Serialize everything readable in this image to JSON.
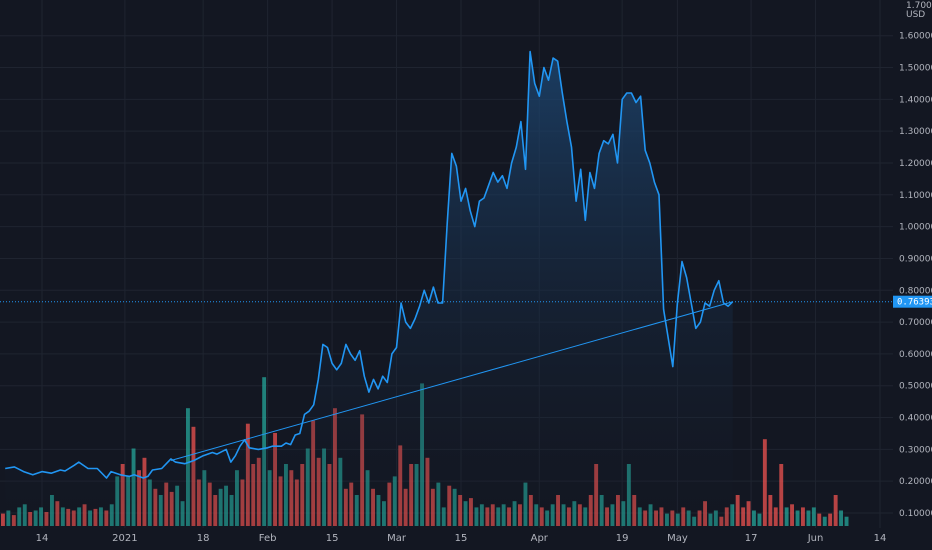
{
  "chart_data": {
    "type": "area",
    "currency": "USD",
    "y_scale_top": "1.70000",
    "current_price": 0.76393,
    "current_price_label": "0.76393",
    "ylim": [
      0.05,
      1.72
    ],
    "y_ticks": [
      {
        "v": 1.6,
        "label": "1.60000"
      },
      {
        "v": 1.5,
        "label": "1.50000"
      },
      {
        "v": 1.4,
        "label": "1.40000"
      },
      {
        "v": 1.3,
        "label": "1.30000"
      },
      {
        "v": 1.2,
        "label": "1.20000"
      },
      {
        "v": 1.1,
        "label": "1.10000"
      },
      {
        "v": 1.0,
        "label": "1.00000"
      },
      {
        "v": 0.9,
        "label": "0.90000"
      },
      {
        "v": 0.8,
        "label": "0.80000"
      },
      {
        "v": 0.7,
        "label": "0.70000"
      },
      {
        "v": 0.6,
        "label": "0.60000"
      },
      {
        "v": 0.5,
        "label": "0.50000"
      },
      {
        "v": 0.4,
        "label": "0.40000"
      },
      {
        "v": 0.3,
        "label": "0.30000"
      },
      {
        "v": 0.2,
        "label": "0.20000"
      },
      {
        "v": 0.1,
        "label": "0.10000"
      }
    ],
    "x_ticks": [
      {
        "day": 0,
        "label": "14"
      },
      {
        "day": 18,
        "label": "2021"
      },
      {
        "day": 35,
        "label": "18"
      },
      {
        "day": 49,
        "label": "Feb"
      },
      {
        "day": 63,
        "label": "15"
      },
      {
        "day": 77,
        "label": "Mar"
      },
      {
        "day": 91,
        "label": "15"
      },
      {
        "day": 108,
        "label": "Apr"
      },
      {
        "day": 126,
        "label": "19"
      },
      {
        "day": 138,
        "label": "May"
      },
      {
        "day": 154,
        "label": "17"
      },
      {
        "day": 168,
        "label": "Jun"
      },
      {
        "day": 182,
        "label": "14"
      }
    ],
    "price_series": [
      [
        -8,
        0.24
      ],
      [
        -6,
        0.245
      ],
      [
        -4,
        0.23
      ],
      [
        -2,
        0.22
      ],
      [
        0,
        0.23
      ],
      [
        2,
        0.225
      ],
      [
        4,
        0.235
      ],
      [
        5,
        0.232
      ],
      [
        7,
        0.25
      ],
      [
        8,
        0.26
      ],
      [
        10,
        0.24
      ],
      [
        12,
        0.24
      ],
      [
        14,
        0.21
      ],
      [
        15,
        0.23
      ],
      [
        17,
        0.22
      ],
      [
        19,
        0.215
      ],
      [
        20,
        0.22
      ],
      [
        22,
        0.21
      ],
      [
        23,
        0.215
      ],
      [
        24,
        0.235
      ],
      [
        26,
        0.24
      ],
      [
        27,
        0.255
      ],
      [
        28,
        0.27
      ],
      [
        29,
        0.26
      ],
      [
        31,
        0.255
      ],
      [
        33,
        0.265
      ],
      [
        35,
        0.28
      ],
      [
        37,
        0.29
      ],
      [
        38,
        0.285
      ],
      [
        40,
        0.3
      ],
      [
        41,
        0.26
      ],
      [
        42,
        0.28
      ],
      [
        43,
        0.31
      ],
      [
        44,
        0.33
      ],
      [
        45,
        0.305
      ],
      [
        47,
        0.3
      ],
      [
        49,
        0.305
      ],
      [
        50,
        0.31
      ],
      [
        52,
        0.31
      ],
      [
        53,
        0.32
      ],
      [
        54,
        0.315
      ],
      [
        55,
        0.345
      ],
      [
        56,
        0.35
      ],
      [
        57,
        0.41
      ],
      [
        58,
        0.42
      ],
      [
        59,
        0.44
      ],
      [
        60,
        0.52
      ],
      [
        61,
        0.63
      ],
      [
        62,
        0.62
      ],
      [
        63,
        0.57
      ],
      [
        64,
        0.55
      ],
      [
        65,
        0.57
      ],
      [
        66,
        0.63
      ],
      [
        67,
        0.6
      ],
      [
        68,
        0.58
      ],
      [
        69,
        0.61
      ],
      [
        70,
        0.53
      ],
      [
        71,
        0.48
      ],
      [
        72,
        0.52
      ],
      [
        73,
        0.49
      ],
      [
        74,
        0.53
      ],
      [
        75,
        0.51
      ],
      [
        76,
        0.6
      ],
      [
        77,
        0.62
      ],
      [
        78,
        0.76
      ],
      [
        79,
        0.7
      ],
      [
        80,
        0.68
      ],
      [
        81,
        0.71
      ],
      [
        82,
        0.75
      ],
      [
        83,
        0.8
      ],
      [
        84,
        0.76
      ],
      [
        85,
        0.81
      ],
      [
        86,
        0.76
      ],
      [
        87,
        0.76
      ],
      [
        88,
        1.01
      ],
      [
        89,
        1.23
      ],
      [
        90,
        1.19
      ],
      [
        91,
        1.08
      ],
      [
        92,
        1.12
      ],
      [
        93,
        1.05
      ],
      [
        94,
        1.0
      ],
      [
        95,
        1.08
      ],
      [
        96,
        1.09
      ],
      [
        97,
        1.13
      ],
      [
        98,
        1.17
      ],
      [
        99,
        1.14
      ],
      [
        100,
        1.16
      ],
      [
        101,
        1.12
      ],
      [
        102,
        1.2
      ],
      [
        103,
        1.25
      ],
      [
        104,
        1.33
      ],
      [
        105,
        1.18
      ],
      [
        106,
        1.55
      ],
      [
        107,
        1.45
      ],
      [
        108,
        1.41
      ],
      [
        109,
        1.5
      ],
      [
        110,
        1.46
      ],
      [
        111,
        1.53
      ],
      [
        112,
        1.52
      ],
      [
        113,
        1.42
      ],
      [
        114,
        1.33
      ],
      [
        115,
        1.25
      ],
      [
        116,
        1.08
      ],
      [
        117,
        1.18
      ],
      [
        118,
        1.02
      ],
      [
        119,
        1.17
      ],
      [
        120,
        1.12
      ],
      [
        121,
        1.23
      ],
      [
        122,
        1.27
      ],
      [
        123,
        1.26
      ],
      [
        124,
        1.29
      ],
      [
        125,
        1.2
      ],
      [
        126,
        1.4
      ],
      [
        127,
        1.42
      ],
      [
        128,
        1.42
      ],
      [
        129,
        1.39
      ],
      [
        130,
        1.41
      ],
      [
        131,
        1.24
      ],
      [
        132,
        1.2
      ],
      [
        133,
        1.14
      ],
      [
        134,
        1.1
      ],
      [
        135,
        0.74
      ],
      [
        136,
        0.65
      ],
      [
        137,
        0.56
      ],
      [
        138,
        0.76
      ],
      [
        139,
        0.89
      ],
      [
        140,
        0.84
      ],
      [
        141,
        0.76
      ],
      [
        142,
        0.68
      ],
      [
        143,
        0.7
      ],
      [
        144,
        0.76
      ],
      [
        145,
        0.75
      ],
      [
        146,
        0.8
      ],
      [
        147,
        0.83
      ],
      [
        148,
        0.76
      ],
      [
        149,
        0.75
      ],
      [
        150,
        0.764
      ]
    ],
    "trendline": {
      "from": [
        28,
        0.265
      ],
      "to": [
        150,
        0.764
      ]
    },
    "volume": [
      {
        "v": 0.04,
        "c": "r"
      },
      {
        "v": 0.05,
        "c": "g"
      },
      {
        "v": 0.035,
        "c": "r"
      },
      {
        "v": 0.06,
        "c": "g"
      },
      {
        "v": 0.07,
        "c": "g"
      },
      {
        "v": 0.045,
        "c": "r"
      },
      {
        "v": 0.05,
        "c": "g"
      },
      {
        "v": 0.06,
        "c": "g"
      },
      {
        "v": 0.045,
        "c": "r"
      },
      {
        "v": 0.1,
        "c": "g"
      },
      {
        "v": 0.08,
        "c": "r"
      },
      {
        "v": 0.06,
        "c": "g"
      },
      {
        "v": 0.055,
        "c": "r"
      },
      {
        "v": 0.05,
        "c": "r"
      },
      {
        "v": 0.06,
        "c": "g"
      },
      {
        "v": 0.07,
        "c": "r"
      },
      {
        "v": 0.05,
        "c": "g"
      },
      {
        "v": 0.055,
        "c": "r"
      },
      {
        "v": 0.06,
        "c": "g"
      },
      {
        "v": 0.05,
        "c": "r"
      },
      {
        "v": 0.07,
        "c": "g"
      },
      {
        "v": 0.16,
        "c": "g"
      },
      {
        "v": 0.2,
        "c": "r"
      },
      {
        "v": 0.16,
        "c": "g"
      },
      {
        "v": 0.25,
        "c": "g"
      },
      {
        "v": 0.18,
        "c": "r"
      },
      {
        "v": 0.22,
        "c": "r"
      },
      {
        "v": 0.15,
        "c": "g"
      },
      {
        "v": 0.12,
        "c": "r"
      },
      {
        "v": 0.1,
        "c": "g"
      },
      {
        "v": 0.14,
        "c": "r"
      },
      {
        "v": 0.11,
        "c": "r"
      },
      {
        "v": 0.13,
        "c": "g"
      },
      {
        "v": 0.08,
        "c": "g"
      },
      {
        "v": 0.38,
        "c": "g"
      },
      {
        "v": 0.32,
        "c": "r"
      },
      {
        "v": 0.15,
        "c": "r"
      },
      {
        "v": 0.18,
        "c": "g"
      },
      {
        "v": 0.14,
        "c": "r"
      },
      {
        "v": 0.1,
        "c": "r"
      },
      {
        "v": 0.12,
        "c": "g"
      },
      {
        "v": 0.13,
        "c": "g"
      },
      {
        "v": 0.1,
        "c": "g"
      },
      {
        "v": 0.18,
        "c": "g"
      },
      {
        "v": 0.15,
        "c": "r"
      },
      {
        "v": 0.33,
        "c": "r"
      },
      {
        "v": 0.2,
        "c": "r"
      },
      {
        "v": 0.22,
        "c": "r"
      },
      {
        "v": 0.48,
        "c": "g"
      },
      {
        "v": 0.18,
        "c": "g"
      },
      {
        "v": 0.3,
        "c": "r"
      },
      {
        "v": 0.16,
        "c": "r"
      },
      {
        "v": 0.2,
        "c": "g"
      },
      {
        "v": 0.18,
        "c": "r"
      },
      {
        "v": 0.15,
        "c": "r"
      },
      {
        "v": 0.2,
        "c": "r"
      },
      {
        "v": 0.25,
        "c": "g"
      },
      {
        "v": 0.34,
        "c": "r"
      },
      {
        "v": 0.22,
        "c": "r"
      },
      {
        "v": 0.25,
        "c": "g"
      },
      {
        "v": 0.2,
        "c": "r"
      },
      {
        "v": 0.38,
        "c": "r"
      },
      {
        "v": 0.22,
        "c": "g"
      },
      {
        "v": 0.12,
        "c": "r"
      },
      {
        "v": 0.14,
        "c": "r"
      },
      {
        "v": 0.1,
        "c": "g"
      },
      {
        "v": 0.36,
        "c": "r"
      },
      {
        "v": 0.18,
        "c": "g"
      },
      {
        "v": 0.12,
        "c": "r"
      },
      {
        "v": 0.1,
        "c": "g"
      },
      {
        "v": 0.08,
        "c": "g"
      },
      {
        "v": 0.14,
        "c": "r"
      },
      {
        "v": 0.16,
        "c": "g"
      },
      {
        "v": 0.26,
        "c": "r"
      },
      {
        "v": 0.12,
        "c": "r"
      },
      {
        "v": 0.2,
        "c": "r"
      },
      {
        "v": 0.2,
        "c": "g"
      },
      {
        "v": 0.46,
        "c": "g"
      },
      {
        "v": 0.22,
        "c": "r"
      },
      {
        "v": 0.12,
        "c": "r"
      },
      {
        "v": 0.14,
        "c": "g"
      },
      {
        "v": 0.06,
        "c": "g"
      },
      {
        "v": 0.13,
        "c": "r"
      },
      {
        "v": 0.12,
        "c": "g"
      },
      {
        "v": 0.1,
        "c": "r"
      },
      {
        "v": 0.08,
        "c": "g"
      },
      {
        "v": 0.09,
        "c": "r"
      },
      {
        "v": 0.06,
        "c": "g"
      },
      {
        "v": 0.07,
        "c": "g"
      },
      {
        "v": 0.06,
        "c": "r"
      },
      {
        "v": 0.07,
        "c": "r"
      },
      {
        "v": 0.06,
        "c": "g"
      },
      {
        "v": 0.07,
        "c": "g"
      },
      {
        "v": 0.06,
        "c": "r"
      },
      {
        "v": 0.08,
        "c": "g"
      },
      {
        "v": 0.07,
        "c": "r"
      },
      {
        "v": 0.14,
        "c": "g"
      },
      {
        "v": 0.1,
        "c": "r"
      },
      {
        "v": 0.07,
        "c": "g"
      },
      {
        "v": 0.06,
        "c": "r"
      },
      {
        "v": 0.05,
        "c": "g"
      },
      {
        "v": 0.07,
        "c": "g"
      },
      {
        "v": 0.1,
        "c": "r"
      },
      {
        "v": 0.07,
        "c": "g"
      },
      {
        "v": 0.06,
        "c": "r"
      },
      {
        "v": 0.08,
        "c": "g"
      },
      {
        "v": 0.07,
        "c": "r"
      },
      {
        "v": 0.06,
        "c": "g"
      },
      {
        "v": 0.1,
        "c": "r"
      },
      {
        "v": 0.2,
        "c": "r"
      },
      {
        "v": 0.1,
        "c": "g"
      },
      {
        "v": 0.06,
        "c": "r"
      },
      {
        "v": 0.07,
        "c": "g"
      },
      {
        "v": 0.1,
        "c": "r"
      },
      {
        "v": 0.08,
        "c": "g"
      },
      {
        "v": 0.2,
        "c": "g"
      },
      {
        "v": 0.1,
        "c": "r"
      },
      {
        "v": 0.06,
        "c": "g"
      },
      {
        "v": 0.05,
        "c": "r"
      },
      {
        "v": 0.07,
        "c": "g"
      },
      {
        "v": 0.05,
        "c": "r"
      },
      {
        "v": 0.06,
        "c": "r"
      },
      {
        "v": 0.04,
        "c": "g"
      },
      {
        "v": 0.05,
        "c": "r"
      },
      {
        "v": 0.04,
        "c": "g"
      },
      {
        "v": 0.06,
        "c": "r"
      },
      {
        "v": 0.05,
        "c": "g"
      },
      {
        "v": 0.03,
        "c": "g"
      },
      {
        "v": 0.05,
        "c": "r"
      },
      {
        "v": 0.08,
        "c": "r"
      },
      {
        "v": 0.04,
        "c": "g"
      },
      {
        "v": 0.05,
        "c": "g"
      },
      {
        "v": 0.03,
        "c": "r"
      },
      {
        "v": 0.06,
        "c": "r"
      },
      {
        "v": 0.07,
        "c": "g"
      },
      {
        "v": 0.1,
        "c": "r"
      },
      {
        "v": 0.06,
        "c": "r"
      },
      {
        "v": 0.08,
        "c": "r"
      },
      {
        "v": 0.05,
        "c": "g"
      },
      {
        "v": 0.04,
        "c": "g"
      },
      {
        "v": 0.28,
        "c": "r"
      },
      {
        "v": 0.1,
        "c": "r"
      },
      {
        "v": 0.06,
        "c": "r"
      },
      {
        "v": 0.2,
        "c": "r"
      },
      {
        "v": 0.06,
        "c": "g"
      },
      {
        "v": 0.07,
        "c": "r"
      },
      {
        "v": 0.05,
        "c": "g"
      },
      {
        "v": 0.06,
        "c": "r"
      },
      {
        "v": 0.05,
        "c": "g"
      },
      {
        "v": 0.06,
        "c": "g"
      },
      {
        "v": 0.04,
        "c": "r"
      },
      {
        "v": 0.03,
        "c": "g"
      },
      {
        "v": 0.04,
        "c": "r"
      },
      {
        "v": 0.1,
        "c": "r"
      },
      {
        "v": 0.05,
        "c": "g"
      },
      {
        "v": 0.03,
        "c": "g"
      }
    ],
    "colors": {
      "background": "#131722",
      "line": "#2196f3",
      "area_top": "#1e4a78",
      "volume_up": "#26a69a",
      "volume_down": "#ef5350",
      "price_tag": "#2196f3",
      "grid": "#1f2430",
      "text": "#b2b5be"
    },
    "grid": true
  }
}
